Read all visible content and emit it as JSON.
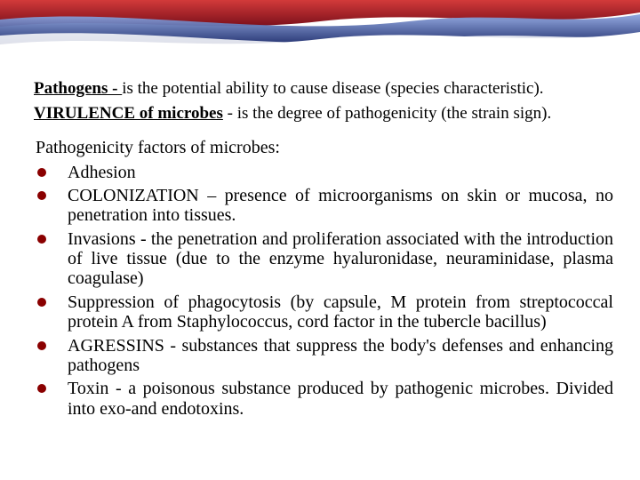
{
  "colors": {
    "bullet": "#8a0000",
    "ribbon_red_dark": "#7a0f1a",
    "ribbon_red_light": "#d23a3a",
    "ribbon_blue_dark": "#1b2a6b",
    "ribbon_blue_light": "#5f7ecf",
    "text": "#000000",
    "background": "#ffffff"
  },
  "typography": {
    "body_family": "Times New Roman",
    "body_size_pt": 15,
    "line_height": 1.12
  },
  "para1": {
    "lead": " Pathogens - ",
    "rest": "is the potential ability to cause disease (species characteristic)."
  },
  "para2": {
    "lead": "VIRULENCE of microbes",
    "rest": " - is the degree of pathogenicity (the strain sign)."
  },
  "subhead": " Pathogenicity factors of microbes:",
  "bullets": [
    "Adhesion",
    "COLONIZATION – presence of microorganisms on skin or mucosa, no penetration into tissues.",
    "Invasions - the penetration and proliferation associated with the introduction of live tissue (due to the enzyme hyaluronidase, neuraminidase, plasma coagulase)",
    "Suppression of phagocytosis (by capsule, M protein from streptococcal protein A from Staphylococcus, cord factor in the tubercle bacillus)",
    "AGRESSINS - substances that suppress the body's defenses and enhancing pathogens",
    "Toxin - a poisonous substance produced by pathogenic microbes. Divided into exo-and endotoxins."
  ]
}
